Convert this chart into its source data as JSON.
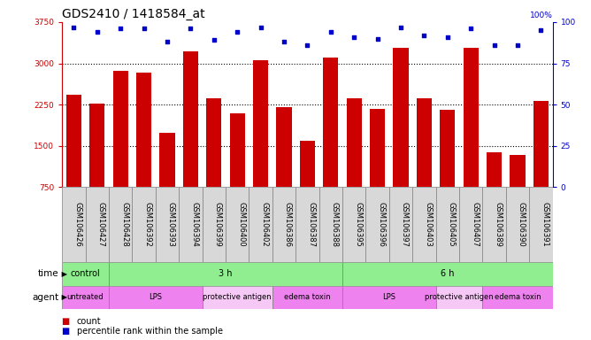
{
  "title": "GDS2410 / 1418584_at",
  "samples": [
    "GSM106426",
    "GSM106427",
    "GSM106428",
    "GSM106392",
    "GSM106393",
    "GSM106394",
    "GSM106399",
    "GSM106400",
    "GSM106402",
    "GSM106386",
    "GSM106387",
    "GSM106388",
    "GSM106395",
    "GSM106396",
    "GSM106397",
    "GSM106403",
    "GSM106405",
    "GSM106407",
    "GSM106389",
    "GSM106390",
    "GSM106391"
  ],
  "counts": [
    2430,
    2270,
    2870,
    2830,
    1740,
    3220,
    2370,
    2090,
    3060,
    2200,
    1590,
    3110,
    2360,
    2170,
    3280,
    2370,
    2160,
    3290,
    1380,
    1340,
    2320
  ],
  "percentile_ranks": [
    97,
    94,
    96,
    96,
    88,
    96,
    89,
    94,
    97,
    88,
    86,
    94,
    91,
    90,
    97,
    92,
    91,
    96,
    86,
    86,
    95
  ],
  "ylim_left": [
    750,
    3750
  ],
  "ylim_right": [
    0,
    100
  ],
  "yticks_left": [
    750,
    1500,
    2250,
    3000,
    3750
  ],
  "yticks_right": [
    0,
    25,
    50,
    75,
    100
  ],
  "bar_color": "#cc0000",
  "dot_color": "#0000cc",
  "grid_color": "#000000",
  "time_groups": [
    {
      "label": "control",
      "start": 0,
      "end": 2,
      "color": "#90ee90"
    },
    {
      "label": "3 h",
      "start": 2,
      "end": 12,
      "color": "#90ee90"
    },
    {
      "label": "6 h",
      "start": 12,
      "end": 21,
      "color": "#90ee90"
    }
  ],
  "agent_groups": [
    {
      "label": "untreated",
      "start": 0,
      "end": 2,
      "color": "#ee82ee"
    },
    {
      "label": "LPS",
      "start": 2,
      "end": 6,
      "color": "#ee82ee"
    },
    {
      "label": "protective antigen",
      "start": 6,
      "end": 9,
      "color": "#f5c8f5"
    },
    {
      "label": "edema toxin",
      "start": 9,
      "end": 12,
      "color": "#ee82ee"
    },
    {
      "label": "LPS",
      "start": 12,
      "end": 16,
      "color": "#ee82ee"
    },
    {
      "label": "protective antigen",
      "start": 16,
      "end": 18,
      "color": "#f5c8f5"
    },
    {
      "label": "edema toxin",
      "start": 18,
      "end": 21,
      "color": "#ee82ee"
    }
  ],
  "legend_count_color": "#cc0000",
  "legend_dot_color": "#0000cc",
  "title_fontsize": 10,
  "tick_fontsize": 6.5,
  "label_fontsize": 8,
  "row_label_fontsize": 7.5,
  "annotation_fontsize": 7
}
